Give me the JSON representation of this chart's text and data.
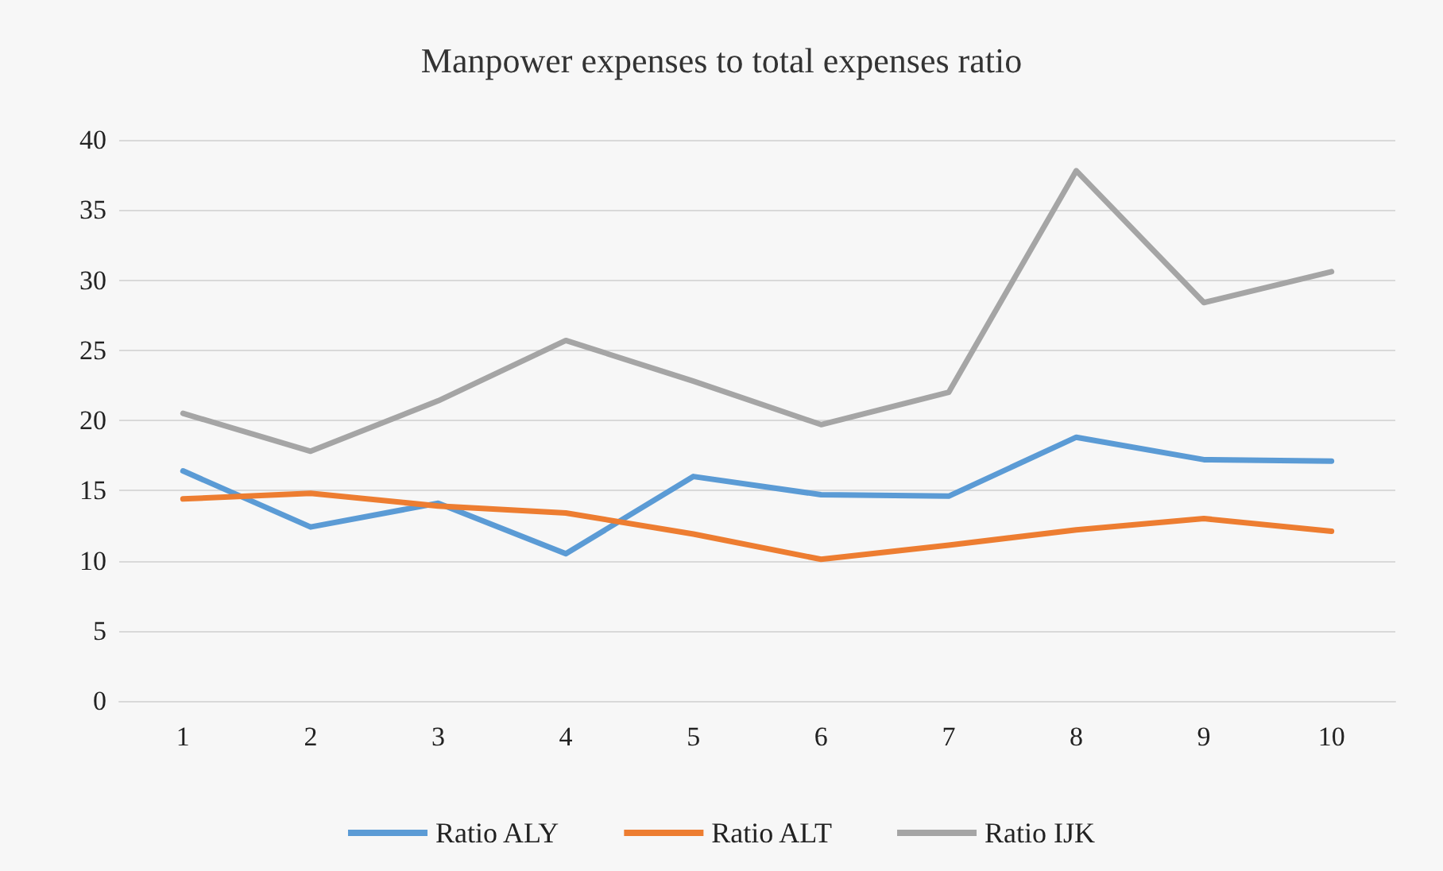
{
  "chart_data": {
    "type": "line",
    "title": "Manpower expenses to total expenses ratio",
    "categories": [
      "1",
      "2",
      "3",
      "4",
      "5",
      "6",
      "7",
      "8",
      "9",
      "10"
    ],
    "series": [
      {
        "name": "Ratio ALY",
        "color": "#5b9bd5",
        "values": [
          16.4,
          12.4,
          14.1,
          10.5,
          16.0,
          14.7,
          14.6,
          18.8,
          17.2,
          17.1
        ]
      },
      {
        "name": "Ratio ALT",
        "color": "#ed7d31",
        "values": [
          14.4,
          14.8,
          13.9,
          13.4,
          11.9,
          10.1,
          11.1,
          12.2,
          13.0,
          12.1
        ]
      },
      {
        "name": "Ratio IJK",
        "color": "#a5a5a5",
        "values": [
          20.5,
          17.8,
          21.4,
          25.7,
          22.8,
          19.7,
          22.0,
          37.8,
          28.4,
          30.6
        ]
      }
    ],
    "ylim": [
      0,
      40
    ],
    "yticks": [
      0,
      5,
      10,
      15,
      20,
      25,
      30,
      35,
      40
    ],
    "grid": "y",
    "legend": "bottom",
    "marker": "none",
    "line_style": "solid"
  }
}
